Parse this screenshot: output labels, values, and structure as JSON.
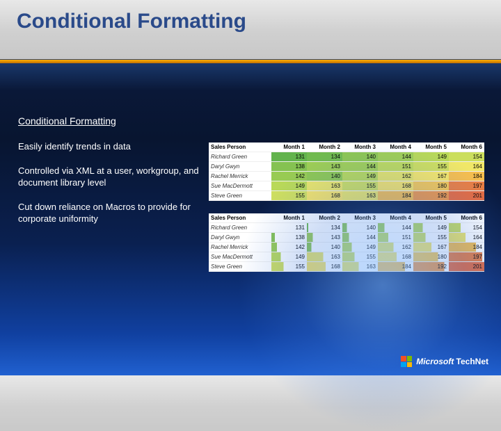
{
  "title": "Conditional Formatting",
  "subhead": "Conditional Formatting",
  "paras": [
    "Easily identify trends in data",
    "Controlled via XML at a user, workgroup, and document library level",
    "Cut down reliance on Macros to provide for corporate uniformity"
  ],
  "brand_prefix": "Microsoft",
  "brand_suffix": "TechNet",
  "table": {
    "headers": [
      "Sales Person",
      "Month 1",
      "Month 2",
      "Month 3",
      "Month 4",
      "Month 5",
      "Month 6"
    ],
    "rows": [
      [
        "Richard Green",
        131,
        134,
        140,
        144,
        149,
        154
      ],
      [
        "Daryl Gwyn",
        138,
        143,
        144,
        151,
        155,
        164
      ],
      [
        "Rachel Merrick",
        142,
        140,
        149,
        162,
        167,
        184
      ],
      [
        "Sue MacDermott",
        149,
        163,
        155,
        168,
        180,
        197
      ],
      [
        "Steve Green",
        155,
        168,
        163,
        184,
        192,
        201
      ]
    ]
  },
  "heat_palette": {
    "low": "#63b34d",
    "mid1": "#b7d957",
    "mid2": "#f7e96a",
    "mid3": "#f6c04e",
    "high": "#e76b3f"
  },
  "value_range": {
    "min": 131,
    "max": 201
  }
}
